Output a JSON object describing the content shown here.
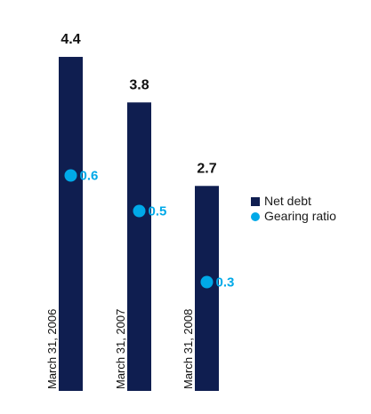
{
  "chart_data": {
    "type": "bar",
    "categories": [
      "March 31, 2006",
      "March 31, 2007",
      "March 31, 2008"
    ],
    "series": [
      {
        "name": "Net debt",
        "values": [
          4.4,
          3.8,
          2.7
        ],
        "color": "#0f1e50",
        "kind": "bar"
      },
      {
        "name": "Gearing ratio",
        "values": [
          0.6,
          0.5,
          0.3
        ],
        "color": "#00a9e8",
        "kind": "point"
      }
    ],
    "value_labels": {
      "net_debt": [
        "4.4",
        "3.8",
        "2.7"
      ],
      "gearing_ratio": [
        "0.6",
        "0.5",
        "0.3"
      ]
    },
    "legend": {
      "position": "right",
      "items": [
        {
          "label": "Net debt",
          "color": "#0f1e50",
          "shape": "square"
        },
        {
          "label": "Gearing ratio",
          "color": "#00a9e8",
          "shape": "circle"
        }
      ]
    },
    "axes_visible": false,
    "grid": false
  }
}
